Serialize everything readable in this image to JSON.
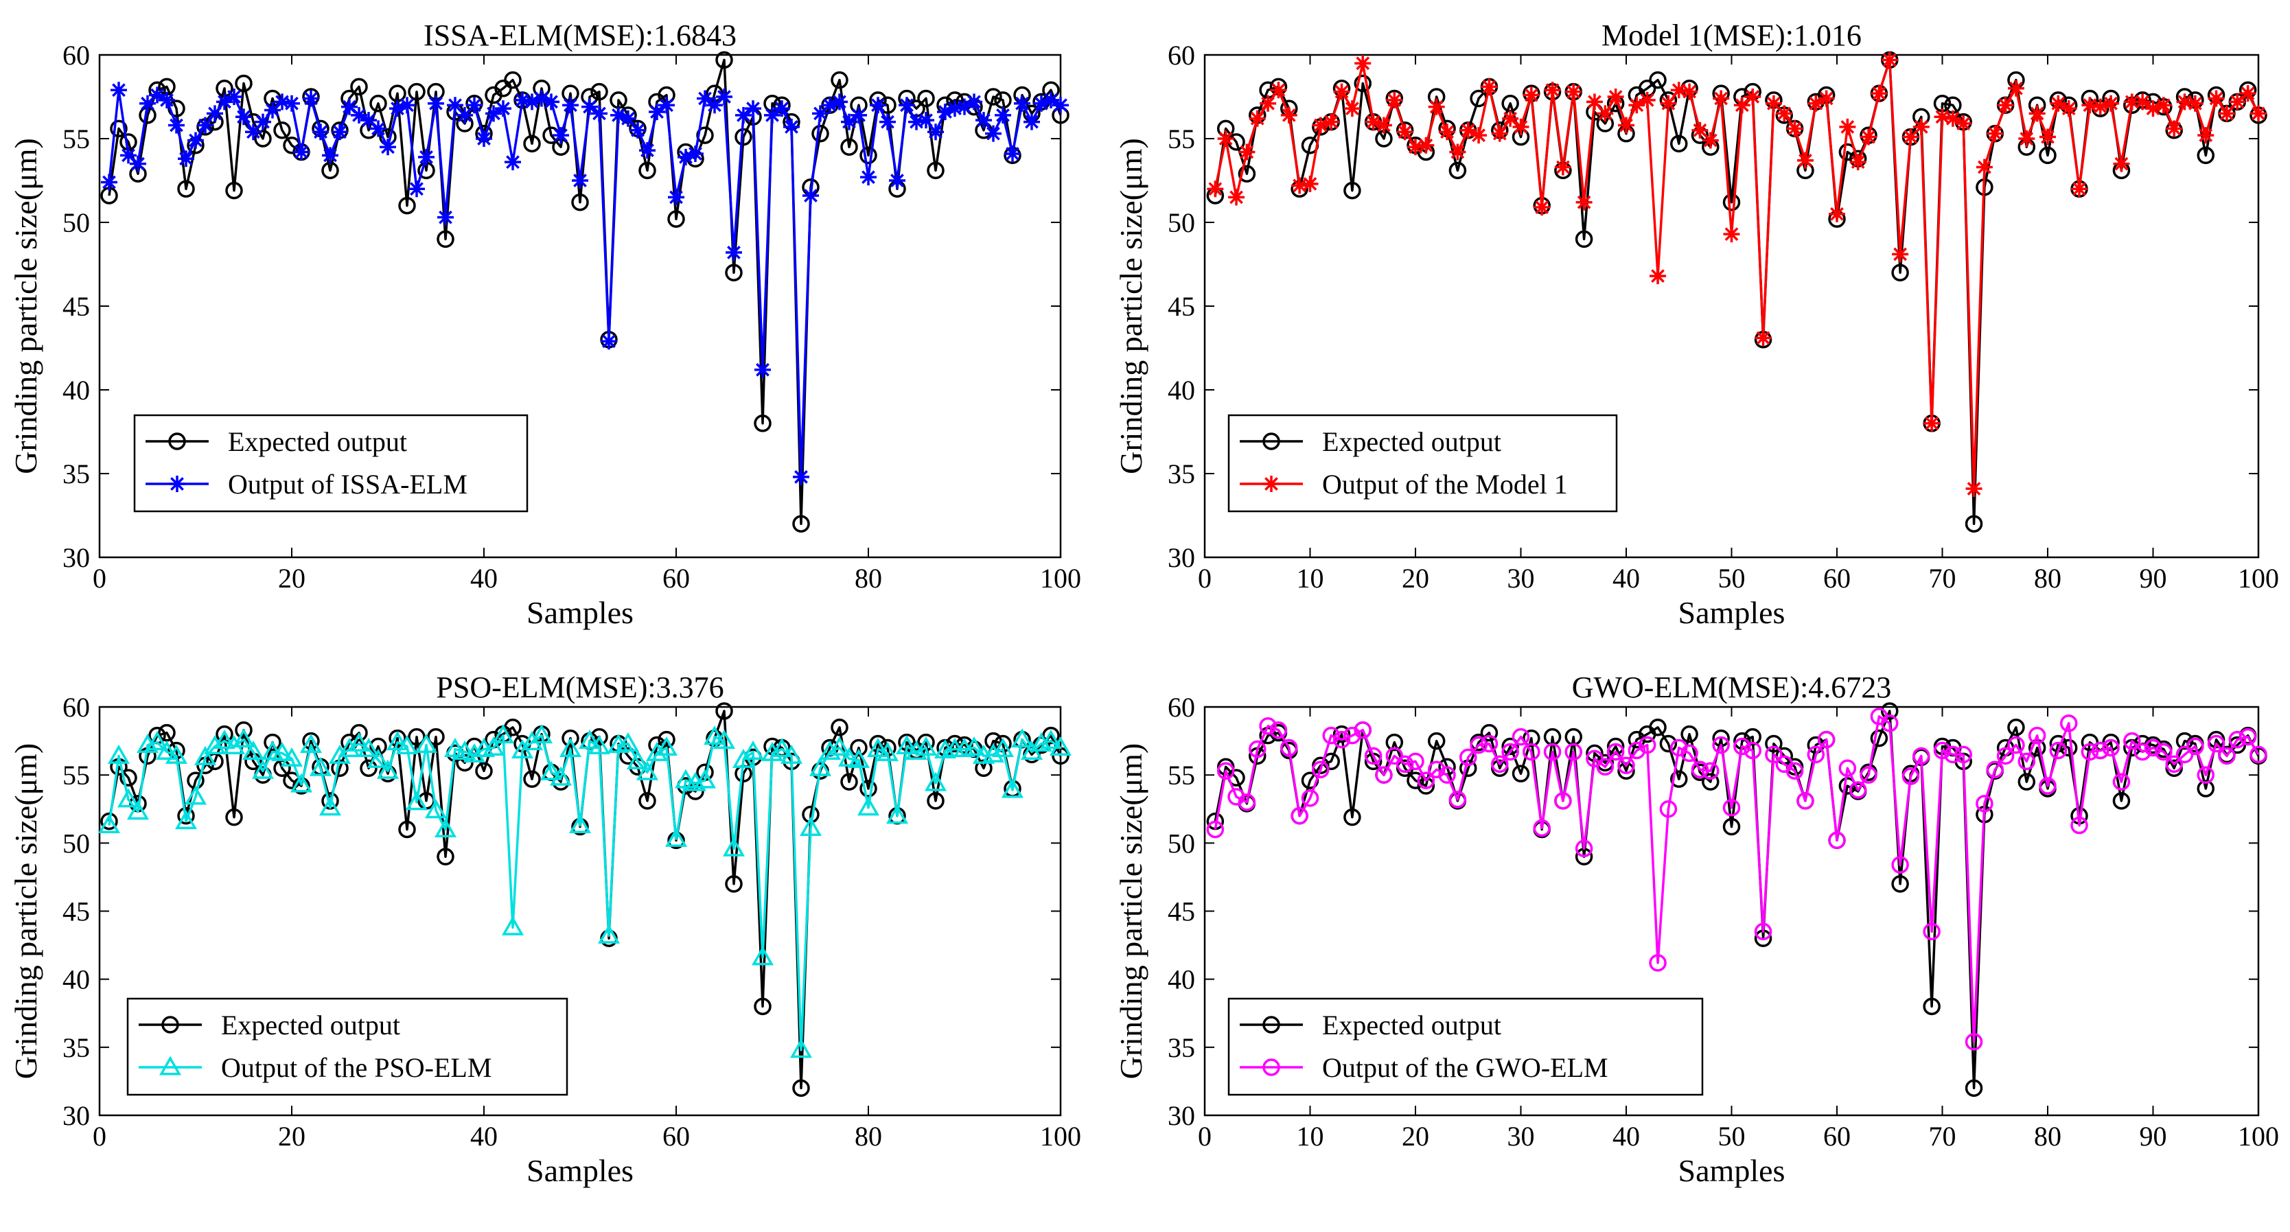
{
  "figure": {
    "caption_hidden": ""
  },
  "chart_data": [
    {
      "type": "line",
      "title": "ISSA-ELM(MSE):1.6843",
      "xlabel": "Samples",
      "ylabel": "Grinding particle size(μm)",
      "xlim": [
        0,
        100
      ],
      "ylim": [
        30,
        60
      ],
      "xticks": [
        0,
        20,
        40,
        60,
        80,
        100
      ],
      "yticks": [
        30,
        35,
        40,
        45,
        50,
        55,
        60
      ],
      "legend_position": "lower-left",
      "series": [
        {
          "name": "Expected output",
          "color": "#000000",
          "marker": "circle",
          "values": [
            51.6,
            55.6,
            54.8,
            52.9,
            56.4,
            57.9,
            58.1,
            56.8,
            52.0,
            54.6,
            55.7,
            56.0,
            58.0,
            51.9,
            58.3,
            56.0,
            55.0,
            57.4,
            55.5,
            54.6,
            54.2,
            57.5,
            55.6,
            53.1,
            55.5,
            57.4,
            58.1,
            55.5,
            57.1,
            55.1,
            57.7,
            51.0,
            57.8,
            53.1,
            57.8,
            49.0,
            56.6,
            55.9,
            57.1,
            55.3,
            57.6,
            58.0,
            58.5,
            57.3,
            54.7,
            58.0,
            55.2,
            54.5,
            57.7,
            51.2,
            57.5,
            57.8,
            43.0,
            57.3,
            56.4,
            55.6,
            53.1,
            57.2,
            57.6,
            50.2,
            54.2,
            53.8,
            55.2,
            57.7,
            59.7,
            47.0,
            55.1,
            56.3,
            38.0,
            57.1,
            57.0,
            56.0,
            32.0,
            52.1,
            55.3,
            57.0,
            58.5,
            54.5,
            57.0,
            54.0,
            57.3,
            57.0,
            52.0,
            57.4,
            56.8,
            57.4,
            53.1,
            57.0,
            57.3,
            57.2,
            56.9,
            55.5,
            57.5,
            57.3,
            54.0,
            57.6,
            56.5,
            57.2,
            57.9,
            56.4
          ]
        },
        {
          "name": "Output of ISSA-ELM",
          "color": "#0000ff",
          "marker": "star",
          "values": [
            52.4,
            57.9,
            54.0,
            53.5,
            57.1,
            57.6,
            57.3,
            55.8,
            53.8,
            54.9,
            55.8,
            56.5,
            57.2,
            57.5,
            56.3,
            55.4,
            56.0,
            56.7,
            57.2,
            57.1,
            54.2,
            57.4,
            55.4,
            54.0,
            55.4,
            56.9,
            56.4,
            56.1,
            55.6,
            54.5,
            56.8,
            57.0,
            52.0,
            53.9,
            57.1,
            50.3,
            57.0,
            56.4,
            57.0,
            55.0,
            56.5,
            56.8,
            53.6,
            57.3,
            57.2,
            57.4,
            57.2,
            55.2,
            57.0,
            52.5,
            56.9,
            56.5,
            42.9,
            56.4,
            56.2,
            55.5,
            54.3,
            56.6,
            57.0,
            51.5,
            53.9,
            54.1,
            57.4,
            57.0,
            57.5,
            48.2,
            56.4,
            56.8,
            41.2,
            56.4,
            56.8,
            55.7,
            34.8,
            51.6,
            56.5,
            57.0,
            57.2,
            56.0,
            56.4,
            52.7,
            57.0,
            56.0,
            52.5,
            57.0,
            56.0,
            56.1,
            55.4,
            56.6,
            56.8,
            56.9,
            57.2,
            56.1,
            55.3,
            56.4,
            54.1,
            57.1,
            56.0,
            57.1,
            57.3,
            57.0
          ]
        }
      ]
    },
    {
      "type": "line",
      "title": "Model 1(MSE):1.016",
      "xlabel": "Samples",
      "ylabel": "Grinding particle size(μm)",
      "xlim": [
        0,
        100
      ],
      "ylim": [
        30,
        60
      ],
      "xticks": [
        0,
        10,
        20,
        30,
        40,
        50,
        60,
        70,
        80,
        90,
        100
      ],
      "yticks": [
        30,
        35,
        40,
        45,
        50,
        55,
        60
      ],
      "legend_position": "lower-left",
      "series": [
        {
          "name": "Expected output",
          "color": "#000000",
          "marker": "circle",
          "values": [
            51.6,
            55.6,
            54.8,
            52.9,
            56.4,
            57.9,
            58.1,
            56.8,
            52.0,
            54.6,
            55.7,
            56.0,
            58.0,
            51.9,
            58.3,
            56.0,
            55.0,
            57.4,
            55.5,
            54.6,
            54.2,
            57.5,
            55.6,
            53.1,
            55.5,
            57.4,
            58.1,
            55.5,
            57.1,
            55.1,
            57.7,
            51.0,
            57.8,
            53.1,
            57.8,
            49.0,
            56.6,
            55.9,
            57.1,
            55.3,
            57.6,
            58.0,
            58.5,
            57.3,
            54.7,
            58.0,
            55.2,
            54.5,
            57.7,
            51.2,
            57.5,
            57.8,
            43.0,
            57.3,
            56.4,
            55.6,
            53.1,
            57.2,
            57.6,
            50.2,
            54.2,
            53.8,
            55.2,
            57.7,
            59.7,
            47.0,
            55.1,
            56.3,
            38.0,
            57.1,
            57.0,
            56.0,
            32.0,
            52.1,
            55.3,
            57.0,
            58.5,
            54.5,
            57.0,
            54.0,
            57.3,
            57.0,
            52.0,
            57.4,
            56.8,
            57.4,
            53.1,
            57.0,
            57.3,
            57.2,
            56.9,
            55.5,
            57.5,
            57.3,
            54.0,
            57.6,
            56.5,
            57.2,
            57.9,
            56.4
          ]
        },
        {
          "name": "Output of the Model 1",
          "color": "#ff0000",
          "marker": "star",
          "values": [
            52.0,
            55.0,
            51.5,
            54.2,
            56.2,
            57.1,
            57.9,
            56.4,
            52.2,
            52.3,
            55.8,
            56.0,
            57.8,
            56.8,
            59.5,
            56.0,
            55.8,
            57.3,
            55.4,
            54.5,
            54.6,
            56.9,
            55.4,
            54.2,
            55.5,
            55.2,
            58.1,
            55.3,
            56.2,
            55.7,
            57.6,
            50.9,
            57.9,
            53.3,
            57.8,
            51.2,
            57.2,
            56.5,
            57.5,
            55.8,
            57.0,
            57.3,
            46.8,
            57.1,
            57.9,
            57.8,
            55.5,
            54.9,
            57.4,
            49.3,
            57.0,
            57.5,
            43.1,
            57.1,
            56.5,
            55.6,
            53.7,
            57.1,
            57.4,
            50.5,
            55.7,
            53.6,
            55.1,
            57.7,
            59.7,
            48.1,
            55.1,
            55.7,
            38.0,
            56.3,
            56.2,
            55.9,
            34.1,
            53.3,
            55.3,
            57.0,
            58.0,
            55.0,
            56.5,
            55.1,
            57.1,
            56.8,
            52.0,
            57.0,
            56.9,
            57.1,
            53.5,
            57.2,
            57.2,
            56.8,
            57.0,
            55.6,
            57.2,
            57.1,
            55.2,
            57.4,
            56.5,
            57.2,
            57.7,
            56.5
          ]
        }
      ]
    },
    {
      "type": "line",
      "title": "PSO-ELM(MSE):3.376",
      "xlabel": "Samples",
      "ylabel": "Grinding particle size(μm)",
      "xlim": [
        0,
        100
      ],
      "ylim": [
        30,
        60
      ],
      "xticks": [
        0,
        20,
        40,
        60,
        80,
        100
      ],
      "yticks": [
        30,
        35,
        40,
        45,
        50,
        55,
        60
      ],
      "legend_position": "lower-left",
      "series": [
        {
          "name": "Expected output",
          "color": "#000000",
          "marker": "circle",
          "values": [
            51.6,
            55.6,
            54.8,
            52.9,
            56.4,
            57.9,
            58.1,
            56.8,
            52.0,
            54.6,
            55.7,
            56.0,
            58.0,
            51.9,
            58.3,
            56.0,
            55.0,
            57.4,
            55.5,
            54.6,
            54.2,
            57.5,
            55.6,
            53.1,
            55.5,
            57.4,
            58.1,
            55.5,
            57.1,
            55.1,
            57.7,
            51.0,
            57.8,
            53.1,
            57.8,
            49.0,
            56.6,
            55.9,
            57.1,
            55.3,
            57.6,
            58.0,
            58.5,
            57.3,
            54.7,
            58.0,
            55.2,
            54.5,
            57.7,
            51.2,
            57.5,
            57.8,
            43.0,
            57.3,
            56.4,
            55.6,
            53.1,
            57.2,
            57.6,
            50.2,
            54.2,
            53.8,
            55.2,
            57.7,
            59.7,
            47.0,
            55.1,
            56.3,
            38.0,
            57.1,
            57.0,
            56.0,
            32.0,
            52.1,
            55.3,
            57.0,
            58.5,
            54.5,
            57.0,
            54.0,
            57.3,
            57.0,
            52.0,
            57.4,
            56.8,
            57.4,
            53.1,
            57.0,
            57.3,
            57.2,
            56.9,
            55.5,
            57.5,
            57.3,
            54.0,
            57.6,
            56.5,
            57.2,
            57.9,
            56.4
          ]
        },
        {
          "name": "Output of the PSO-ELM",
          "color": "#00e0e0",
          "marker": "triangle",
          "values": [
            51.3,
            56.4,
            53.2,
            52.3,
            57.2,
            57.4,
            56.7,
            56.4,
            51.6,
            53.4,
            56.3,
            57.1,
            57.5,
            57.1,
            57.6,
            56.7,
            55.3,
            56.7,
            56.6,
            56.2,
            54.3,
            57.2,
            55.5,
            52.6,
            56.4,
            56.9,
            57.3,
            56.9,
            56.1,
            55.3,
            57.4,
            57.1,
            53.0,
            57.2,
            52.4,
            51.0,
            56.9,
            56.7,
            56.5,
            56.9,
            57.0,
            57.9,
            43.8,
            56.8,
            57.4,
            57.9,
            55.2,
            54.8,
            56.9,
            51.3,
            57.5,
            57.1,
            43.2,
            57.2,
            57.3,
            56.0,
            55.2,
            56.6,
            57.0,
            50.3,
            54.6,
            54.4,
            54.6,
            57.8,
            57.5,
            49.6,
            56.1,
            56.7,
            41.6,
            56.6,
            56.9,
            56.4,
            34.8,
            51.1,
            55.5,
            56.7,
            57.0,
            56.2,
            56.1,
            52.6,
            56.9,
            56.6,
            52.0,
            57.1,
            56.7,
            57.0,
            54.4,
            56.8,
            56.9,
            56.9,
            57.0,
            56.4,
            56.5,
            56.9,
            53.9,
            57.6,
            56.7,
            57.3,
            57.5,
            57.0
          ]
        }
      ]
    },
    {
      "type": "line",
      "title": "GWO-ELM(MSE):4.6723",
      "xlabel": "Samples",
      "ylabel": "Grinding particle size(μm)",
      "xlim": [
        0,
        100
      ],
      "ylim": [
        30,
        60
      ],
      "xticks": [
        0,
        10,
        20,
        30,
        40,
        50,
        60,
        70,
        80,
        90,
        100
      ],
      "yticks": [
        30,
        35,
        40,
        45,
        50,
        55,
        60
      ],
      "legend_position": "lower-left",
      "series": [
        {
          "name": "Expected output",
          "color": "#000000",
          "marker": "circle",
          "values": [
            51.6,
            55.6,
            54.8,
            52.9,
            56.4,
            57.9,
            58.1,
            56.8,
            52.0,
            54.6,
            55.7,
            56.0,
            58.0,
            51.9,
            58.3,
            56.0,
            55.0,
            57.4,
            55.5,
            54.6,
            54.2,
            57.5,
            55.6,
            53.1,
            55.5,
            57.4,
            58.1,
            55.5,
            57.1,
            55.1,
            57.7,
            51.0,
            57.8,
            53.1,
            57.8,
            49.0,
            56.6,
            55.9,
            57.1,
            55.3,
            57.6,
            58.0,
            58.5,
            57.3,
            54.7,
            58.0,
            55.2,
            54.5,
            57.7,
            51.2,
            57.5,
            57.8,
            43.0,
            57.3,
            56.4,
            55.6,
            53.1,
            57.2,
            57.6,
            50.2,
            54.2,
            53.8,
            55.2,
            57.7,
            59.7,
            47.0,
            55.1,
            56.3,
            38.0,
            57.1,
            57.0,
            56.0,
            32.0,
            52.1,
            55.3,
            57.0,
            58.5,
            54.5,
            57.0,
            54.0,
            57.3,
            57.0,
            52.0,
            57.4,
            56.8,
            57.4,
            53.1,
            57.0,
            57.3,
            57.2,
            56.9,
            55.5,
            57.5,
            57.3,
            54.0,
            57.6,
            56.5,
            57.2,
            57.9,
            56.4
          ]
        },
        {
          "name": "Output of the GWO-ELM",
          "color": "#ff00ff",
          "marker": "circle",
          "values": [
            51.0,
            55.3,
            53.4,
            53.0,
            56.9,
            58.6,
            58.3,
            57.0,
            52.0,
            53.3,
            55.4,
            57.9,
            57.6,
            57.9,
            58.3,
            56.4,
            55.0,
            56.4,
            55.8,
            56.0,
            54.6,
            55.4,
            55.0,
            53.2,
            56.3,
            57.2,
            57.3,
            55.8,
            56.7,
            57.8,
            56.7,
            51.1,
            56.7,
            53.1,
            56.7,
            49.6,
            56.2,
            55.6,
            56.7,
            55.7,
            56.8,
            57.2,
            41.2,
            52.5,
            57.0,
            56.6,
            55.4,
            55.3,
            57.2,
            52.6,
            57.1,
            56.8,
            43.5,
            56.5,
            55.8,
            55.3,
            53.1,
            56.5,
            57.6,
            50.2,
            55.5,
            53.9,
            55.0,
            59.3,
            58.8,
            48.4,
            54.9,
            56.4,
            43.5,
            56.8,
            56.5,
            56.5,
            35.4,
            52.9,
            55.4,
            56.4,
            57.2,
            56.0,
            57.9,
            54.2,
            56.8,
            58.8,
            51.3,
            56.7,
            56.8,
            57.0,
            54.5,
            57.5,
            56.7,
            57.0,
            56.7,
            55.8,
            56.5,
            57.1,
            55.0,
            57.3,
            56.4,
            57.6,
            57.8,
            56.5
          ]
        }
      ]
    }
  ]
}
